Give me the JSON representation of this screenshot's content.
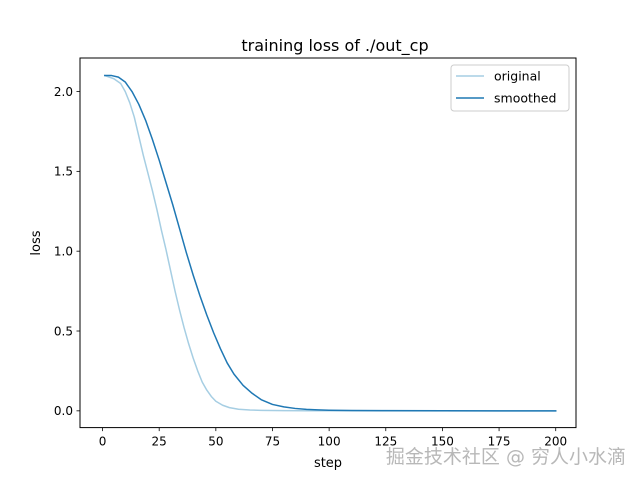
{
  "chart_data": {
    "type": "line",
    "title": "training loss of ./out_cp",
    "xlabel": "step",
    "ylabel": "loss",
    "xlim": [
      -9.95,
      208.95
    ],
    "ylim": [
      -0.105,
      2.21
    ],
    "xticks": [
      0,
      25,
      50,
      75,
      100,
      125,
      150,
      175,
      200
    ],
    "yticks": [
      0.0,
      0.5,
      1.0,
      1.5,
      2.0
    ],
    "ytick_labels": [
      "0.0",
      "0.5",
      "1.0",
      "1.5",
      "2.0"
    ],
    "legend": "top-right",
    "grid": false,
    "series": [
      {
        "name": "original",
        "color": "#a6cee3",
        "x": [
          1,
          5,
          8,
          10,
          12,
          14,
          16,
          18,
          20,
          22,
          24,
          26,
          28,
          30,
          32,
          34,
          36,
          38,
          40,
          42,
          44,
          46,
          48,
          50,
          53,
          56,
          60,
          65,
          70,
          75,
          80,
          90,
          100,
          125,
          150,
          175,
          200
        ],
        "y": [
          2.1,
          2.08,
          2.05,
          2.0,
          1.93,
          1.84,
          1.72,
          1.6,
          1.49,
          1.38,
          1.26,
          1.13,
          1.01,
          0.88,
          0.75,
          0.63,
          0.52,
          0.42,
          0.33,
          0.25,
          0.18,
          0.13,
          0.09,
          0.06,
          0.035,
          0.02,
          0.01,
          0.005,
          0.003,
          0.002,
          0.001,
          0.0005,
          0.0003,
          0.0001,
          0.0,
          0.0,
          0.0
        ]
      },
      {
        "name": "smoothed",
        "color": "#1f78b4",
        "x": [
          1,
          4,
          7,
          10,
          13,
          16,
          19,
          22,
          25,
          28,
          31,
          34,
          37,
          40,
          43,
          46,
          49,
          52,
          55,
          58,
          62,
          66,
          70,
          75,
          80,
          85,
          90,
          95,
          100,
          110,
          125,
          150,
          175,
          200
        ],
        "y": [
          2.1,
          2.1,
          2.09,
          2.06,
          2.0,
          1.92,
          1.82,
          1.7,
          1.57,
          1.43,
          1.29,
          1.14,
          0.99,
          0.85,
          0.72,
          0.6,
          0.49,
          0.39,
          0.3,
          0.23,
          0.16,
          0.11,
          0.07,
          0.04,
          0.025,
          0.015,
          0.009,
          0.006,
          0.004,
          0.002,
          0.001,
          0.0003,
          0.0001,
          0.0
        ]
      }
    ]
  },
  "watermark": "掘金技术社区 @ 穷人小水滴"
}
